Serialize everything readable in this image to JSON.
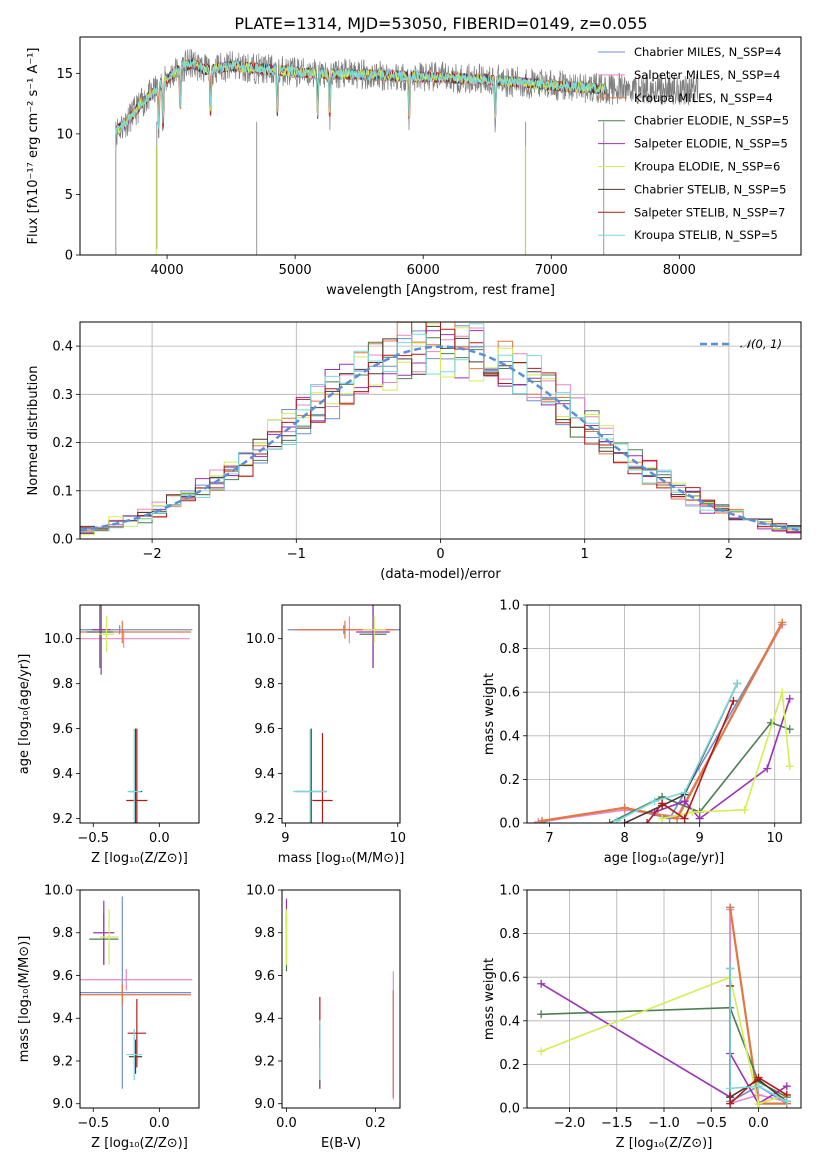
{
  "title": "PLATE=1314, MJD=53050, FIBERID=0149, z=0.055",
  "colors": [
    "#6f8fd1",
    "#e887c8",
    "#e07840",
    "#4e7d54",
    "#9b30b8",
    "#d4ee54",
    "#4a3a2f",
    "#b01b1b",
    "#7ad8dc",
    "#7f7f7f"
  ],
  "chart_data": [
    {
      "id": "spectrum",
      "type": "line",
      "xlabel": "wavelength [Angstrom, rest frame]",
      "ylabel": "Flux [fλ10⁻¹⁷ erg cm⁻² s⁻¹ A⁻¹]",
      "xlim": [
        3320,
        8950
      ],
      "ylim": [
        0,
        18
      ],
      "xticks": [
        4000,
        5000,
        6000,
        7000,
        8000
      ],
      "yticks": [
        0,
        5,
        10,
        15
      ],
      "legend_position": "top-right",
      "series": [
        {
          "name": "Chabrier MILES, N_SSP=4"
        },
        {
          "name": "Salpeter MILES, N_SSP=4"
        },
        {
          "name": "Kroupa MILES, N_SSP=4"
        },
        {
          "name": "Chabrier ELODIE, N_SSP=5"
        },
        {
          "name": "Salpeter ELODIE, N_SSP=5"
        },
        {
          "name": "Kroupa ELODIE, N_SSP=6"
        },
        {
          "name": "Chabrier STELIB, N_SSP=5"
        },
        {
          "name": "Salpeter STELIB, N_SSP=7"
        },
        {
          "name": "Kroupa STELIB, N_SSP=5"
        }
      ],
      "continuum": {
        "x": [
          3600,
          3700,
          3800,
          3900,
          4000,
          4100,
          4200,
          4300,
          4500,
          4700,
          5000,
          5200,
          5500,
          6000,
          6500,
          7000,
          7300,
          7400
        ],
        "y": [
          10.2,
          11.2,
          12.5,
          13.5,
          14.5,
          15.5,
          15.8,
          15.3,
          15.6,
          15.4,
          15.1,
          15.0,
          14.9,
          14.7,
          14.5,
          14.0,
          13.8,
          13.7
        ]
      }
    },
    {
      "id": "residuals",
      "type": "histogram",
      "xlabel": "(data-model)/error",
      "ylabel": "Normed distribution",
      "xlim": [
        -2.5,
        2.5
      ],
      "ylim": [
        0,
        0.45
      ],
      "xticks": [
        -2,
        -1,
        0,
        1,
        2
      ],
      "yticks": [
        0.0,
        0.1,
        0.2,
        0.3,
        0.4
      ],
      "grid": true,
      "reference_label": "𝒩(0, 1)",
      "legend_position": "top-right",
      "bin_width": 0.1
    },
    {
      "id": "age-vs-Z",
      "type": "errorbar",
      "xlabel": "Z [log₁₀(Z/Z⊙)]",
      "ylabel": "age  [log₁₀(age/yr)]",
      "xlim": [
        -0.6,
        0.3
      ],
      "ylim": [
        9.18,
        10.15
      ],
      "xticks": [
        -0.5,
        0.0
      ],
      "yticks": [
        9.2,
        9.4,
        9.6,
        9.8,
        10.0
      ],
      "points": [
        {
          "x": -0.3,
          "y": 10.04,
          "xerr": 0.55,
          "yerr": 0.02,
          "c": 0
        },
        {
          "x": -0.27,
          "y": 10.0,
          "xerr": 0.5,
          "yerr": 0.04,
          "c": 1
        },
        {
          "x": -0.28,
          "y": 10.03,
          "xerr": 0.52,
          "yerr": 0.05,
          "c": 2
        },
        {
          "x": -0.45,
          "y": 10.03,
          "xerr": 0.1,
          "yerr": 0.16,
          "c": 3
        },
        {
          "x": -0.44,
          "y": 10.04,
          "xerr": 0.07,
          "yerr": 0.2,
          "c": 4
        },
        {
          "x": -0.4,
          "y": 10.02,
          "xerr": 0.06,
          "yerr": 0.08,
          "c": 5
        },
        {
          "x": -0.18,
          "y": 9.32,
          "xerr": 0.05,
          "yerr": 0.28,
          "c": 6
        },
        {
          "x": -0.17,
          "y": 9.28,
          "xerr": 0.08,
          "yerr": 0.32,
          "c": 7
        },
        {
          "x": -0.19,
          "y": 9.32,
          "xerr": 0.05,
          "yerr": 0.28,
          "c": 8
        }
      ]
    },
    {
      "id": "age-vs-mass",
      "type": "errorbar",
      "xlabel": "mass [log₁₀(M/M⊙)]",
      "ylabel": "",
      "xlim": [
        8.97,
        10.02
      ],
      "ylim": [
        9.18,
        10.15
      ],
      "xticks": [
        9,
        10
      ],
      "yticks": [
        9.2,
        9.4,
        9.6,
        9.8,
        10.0
      ],
      "points": [
        {
          "x": 9.52,
          "y": 10.04,
          "xerr": 0.5,
          "yerr": 0.02,
          "c": 0
        },
        {
          "x": 9.57,
          "y": 10.04,
          "xerr": 0.4,
          "yerr": 0.06,
          "c": 1
        },
        {
          "x": 9.53,
          "y": 10.04,
          "xerr": 0.45,
          "yerr": 0.04,
          "c": 2
        },
        {
          "x": 9.78,
          "y": 10.02,
          "xerr": 0.12,
          "yerr": 0.15,
          "c": 3
        },
        {
          "x": 9.78,
          "y": 10.03,
          "xerr": 0.15,
          "yerr": 0.16,
          "c": 4
        },
        {
          "x": 9.79,
          "y": 10.04,
          "xerr": 0.1,
          "yerr": 0.06,
          "c": 5
        },
        {
          "x": 9.23,
          "y": 9.32,
          "xerr": 0.14,
          "yerr": 0.28,
          "c": 6
        },
        {
          "x": 9.33,
          "y": 9.28,
          "xerr": 0.09,
          "yerr": 0.3,
          "c": 7
        },
        {
          "x": 9.22,
          "y": 9.32,
          "xerr": 0.15,
          "yerr": 0.28,
          "c": 8
        }
      ]
    },
    {
      "id": "weight-vs-age",
      "type": "line",
      "xlabel": "age  [log₁₀(age/yr)]",
      "ylabel": "mass weight",
      "xlim": [
        6.7,
        10.35
      ],
      "ylim": [
        0,
        1
      ],
      "xticks": [
        7,
        8,
        9,
        10
      ],
      "yticks": [
        0.0,
        0.2,
        0.4,
        0.6,
        0.8,
        1.0
      ],
      "grid": true,
      "lines": [
        {
          "c": 0,
          "x": [
            6.9,
            8.0,
            8.6,
            10.1
          ],
          "y": [
            0.005,
            0.07,
            0.02,
            0.91
          ]
        },
        {
          "c": 1,
          "x": [
            6.85,
            8.0,
            8.7,
            10.1
          ],
          "y": [
            0.005,
            0.06,
            0.03,
            0.91
          ]
        },
        {
          "c": 2,
          "x": [
            6.9,
            8.0,
            8.7,
            10.1
          ],
          "y": [
            0.01,
            0.07,
            0.02,
            0.92
          ]
        },
        {
          "c": 3,
          "x": [
            7.8,
            8.5,
            9.0,
            9.95,
            10.2
          ],
          "y": [
            0.0,
            0.12,
            0.05,
            0.46,
            0.43
          ]
        },
        {
          "c": 4,
          "x": [
            8.4,
            8.8,
            9.0,
            9.9,
            10.2
          ],
          "y": [
            0.05,
            0.1,
            0.02,
            0.25,
            0.57
          ]
        },
        {
          "c": 5,
          "x": [
            8.5,
            8.9,
            9.6,
            10.1,
            10.2
          ],
          "y": [
            0.02,
            0.05,
            0.06,
            0.6,
            0.26
          ]
        },
        {
          "c": 6,
          "x": [
            8.0,
            8.5,
            8.8,
            9.5
          ],
          "y": [
            0.0,
            0.08,
            0.13,
            0.64
          ]
        },
        {
          "c": 7,
          "x": [
            8.3,
            8.5,
            8.8,
            9.45
          ],
          "y": [
            0.0,
            0.09,
            0.02,
            0.56
          ]
        },
        {
          "c": 8,
          "x": [
            7.9,
            8.4,
            8.8,
            9.5
          ],
          "y": [
            0.01,
            0.1,
            0.14,
            0.64
          ]
        }
      ]
    },
    {
      "id": "mass-vs-Z",
      "type": "errorbar",
      "xlabel": "Z [log₁₀(Z/Z⊙)]",
      "ylabel": "mass [log₁₀(M/M⊙)]",
      "xlim": [
        -0.6,
        0.3
      ],
      "ylim": [
        8.98,
        10.0
      ],
      "xticks": [
        -0.5,
        0.0
      ],
      "yticks": [
        9.0,
        9.2,
        9.4,
        9.6,
        9.8,
        10.0
      ],
      "points": [
        {
          "x": -0.28,
          "y": 9.52,
          "xerr": 0.52,
          "yerr": 0.45,
          "c": 0
        },
        {
          "x": -0.25,
          "y": 9.58,
          "xerr": 0.5,
          "yerr": 0.05,
          "c": 1
        },
        {
          "x": -0.28,
          "y": 9.51,
          "xerr": 0.52,
          "yerr": 0.05,
          "c": 2
        },
        {
          "x": -0.42,
          "y": 9.77,
          "xerr": 0.11,
          "yerr": 0.12,
          "c": 3
        },
        {
          "x": -0.42,
          "y": 9.8,
          "xerr": 0.08,
          "yerr": 0.15,
          "c": 4
        },
        {
          "x": -0.38,
          "y": 9.78,
          "xerr": 0.07,
          "yerr": 0.13,
          "c": 5
        },
        {
          "x": -0.18,
          "y": 9.22,
          "xerr": 0.05,
          "yerr": 0.08,
          "c": 6
        },
        {
          "x": -0.17,
          "y": 9.33,
          "xerr": 0.07,
          "yerr": 0.16,
          "c": 7
        },
        {
          "x": -0.19,
          "y": 9.23,
          "xerr": 0.06,
          "yerr": 0.12,
          "c": 8
        }
      ]
    },
    {
      "id": "mass-vs-ebv",
      "type": "errorbar",
      "xlabel": "E(B-V)",
      "ylabel": "",
      "xlim": [
        -0.01,
        0.255
      ],
      "ylim": [
        8.98,
        10.0
      ],
      "xticks": [
        0.0,
        0.2
      ],
      "yticks": [
        9.0,
        9.2,
        9.4,
        9.6,
        9.8,
        10.0
      ],
      "points": [
        {
          "x": 0.24,
          "y": 9.28,
          "xerr": 0,
          "yerr": 0.25,
          "c": 0
        },
        {
          "x": 0.24,
          "y": 9.32,
          "xerr": 0,
          "yerr": 0.3,
          "c": 1
        },
        {
          "x": 0.24,
          "y": 9.28,
          "xerr": 0,
          "yerr": 0.25,
          "c": 2
        },
        {
          "x": 0.0,
          "y": 9.75,
          "xerr": 0,
          "yerr": 0.13,
          "c": 3
        },
        {
          "x": 0.0,
          "y": 9.9,
          "xerr": 0,
          "yerr": 0.06,
          "c": 4
        },
        {
          "x": 0.0,
          "y": 9.78,
          "xerr": 0,
          "yerr": 0.13,
          "c": 5
        },
        {
          "x": 0.075,
          "y": 9.22,
          "xerr": 0,
          "yerr": 0.15,
          "c": 6
        },
        {
          "x": 0.075,
          "y": 9.38,
          "xerr": 0,
          "yerr": 0.12,
          "c": 7
        },
        {
          "x": 0.075,
          "y": 9.25,
          "xerr": 0,
          "yerr": 0.14,
          "c": 8
        }
      ]
    },
    {
      "id": "weight-vs-Z",
      "type": "line",
      "xlabel": "Z [log₁₀(Z/Z⊙)]",
      "ylabel": "mass weight",
      "xlim": [
        -2.45,
        0.45
      ],
      "ylim": [
        0,
        1
      ],
      "xticks": [
        -2.0,
        -1.5,
        -1.0,
        -0.5,
        0.0
      ],
      "yticks": [
        0.0,
        0.2,
        0.4,
        0.6,
        0.8,
        1.0
      ],
      "grid": true,
      "lines": [
        {
          "c": 0,
          "x": [
            -0.3,
            -0.3,
            0.0,
            0.3
          ],
          "y": [
            0.92,
            0.03,
            0.1,
            0.02
          ]
        },
        {
          "c": 1,
          "x": [
            -0.3,
            -0.3,
            0.0,
            0.3
          ],
          "y": [
            0.91,
            0.02,
            0.06,
            0.03
          ]
        },
        {
          "c": 2,
          "x": [
            -0.3,
            0.0,
            0.3
          ],
          "y": [
            0.92,
            0.02,
            0.02
          ]
        },
        {
          "c": 3,
          "x": [
            -2.3,
            -0.3,
            0.0,
            0.3
          ],
          "y": [
            0.43,
            0.46,
            0.12,
            0.05
          ]
        },
        {
          "c": 4,
          "x": [
            -2.3,
            -0.3,
            -0.3,
            0.0,
            0.3
          ],
          "y": [
            0.57,
            0.05,
            0.25,
            0.02,
            0.1
          ]
        },
        {
          "c": 5,
          "x": [
            -2.3,
            -0.3,
            0.0,
            0.3
          ],
          "y": [
            0.26,
            0.6,
            0.02,
            0.06
          ]
        },
        {
          "c": 6,
          "x": [
            -0.3,
            -0.3,
            0.0,
            0.3
          ],
          "y": [
            0.64,
            0.05,
            0.13,
            0.03
          ]
        },
        {
          "c": 7,
          "x": [
            -0.3,
            -0.3,
            0.0,
            0.3
          ],
          "y": [
            0.56,
            0.02,
            0.14,
            0.06
          ]
        },
        {
          "c": 8,
          "x": [
            -0.3,
            -0.3,
            0.0,
            0.3
          ],
          "y": [
            0.64,
            0.09,
            0.1,
            0.03
          ]
        }
      ]
    }
  ]
}
